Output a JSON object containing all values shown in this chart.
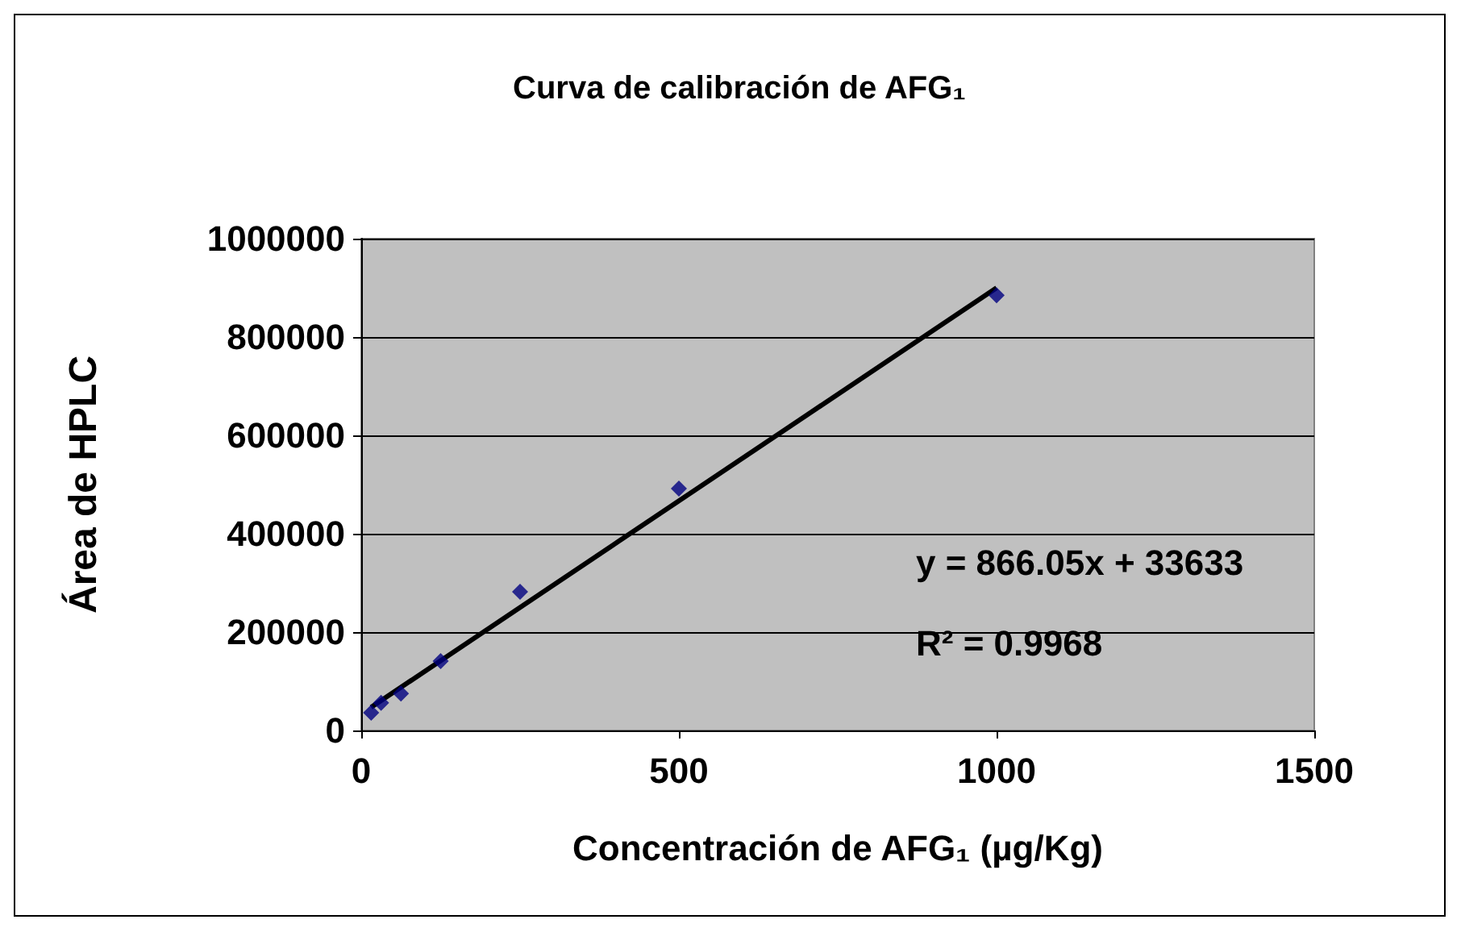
{
  "chart_data": {
    "type": "scatter",
    "title": "Curva de calibración de AFG₁",
    "xlabel": "Concentración de AFG₁ (µg/Kg)",
    "ylabel": "Área de HPLC",
    "series": [
      {
        "color": "#000080",
        "marker": "diamond",
        "x": [
          15.6,
          31.25,
          62.5,
          125,
          250,
          500,
          1000
        ],
        "values": [
          36000,
          56000,
          75000,
          141000,
          282000,
          492000,
          885000
        ]
      },
      {
        "type": "line",
        "color": "#000000",
        "marker": "none",
        "line_style": "solid",
        "x": [
          15.6,
          1000
        ],
        "values": [
          47000,
          900000
        ]
      }
    ],
    "xlim": [
      0,
      1500
    ],
    "xticks": [
      0,
      500,
      1000,
      1500
    ],
    "ylim": [
      0,
      1000000
    ],
    "yticks": [
      0,
      200000,
      400000,
      600000,
      800000,
      1000000
    ],
    "grid": "y",
    "annotations": [
      "y = 866.05x + 33633",
      "R² = 0.9968"
    ]
  }
}
